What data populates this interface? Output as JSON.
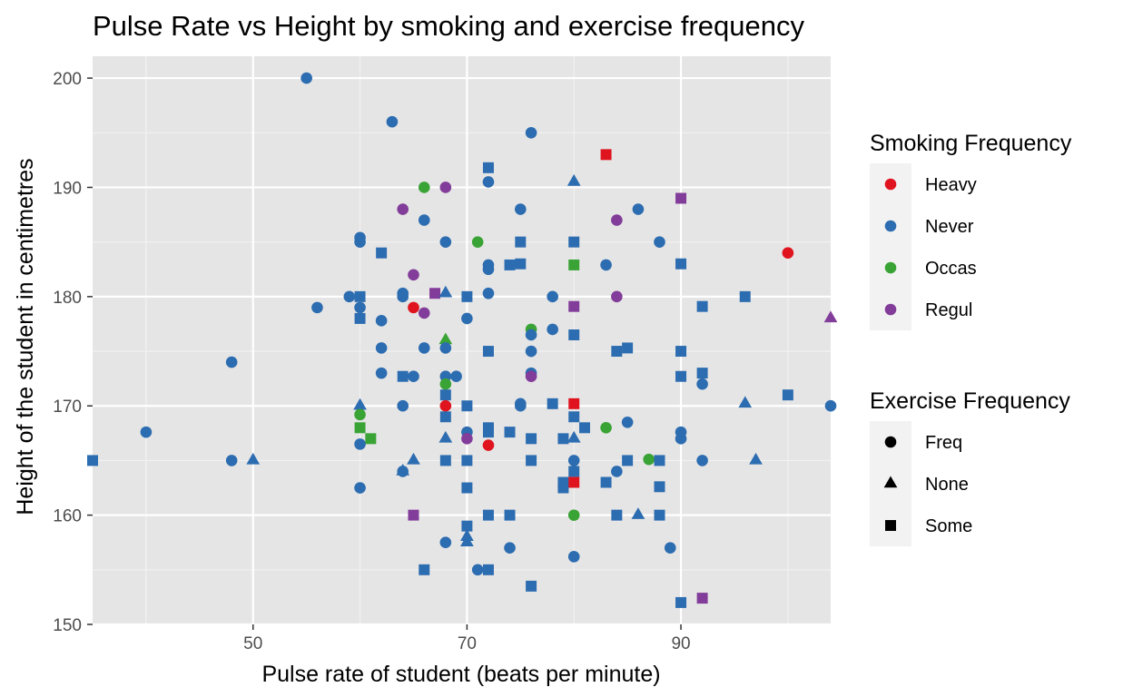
{
  "chart_data": {
    "type": "scatter",
    "title": "Pulse Rate vs Height by smoking and exercise frequency",
    "xlabel": "Pulse rate of student (beats per minute)",
    "ylabel": "Height of the student in centimetres",
    "xlim": [
      35,
      104
    ],
    "ylim": [
      150,
      202
    ],
    "xticks": [
      50,
      70,
      90
    ],
    "yticks": [
      150,
      160,
      170,
      180,
      190,
      200
    ],
    "grid": true,
    "panel_background": "#e5e5e5",
    "legends": [
      {
        "title": "Smoking Frequency",
        "kind": "color",
        "items": [
          {
            "label": "Heavy",
            "key": "Heavy",
            "color": "#e0141e"
          },
          {
            "label": "Never",
            "key": "Never",
            "color": "#2c6cb0"
          },
          {
            "label": "Occas",
            "key": "Occas",
            "color": "#3aa335"
          },
          {
            "label": "Regul",
            "key": "Regul",
            "color": "#823c99"
          }
        ]
      },
      {
        "title": "Exercise Frequency",
        "kind": "shape",
        "items": [
          {
            "label": "Freq",
            "key": "Freq",
            "shape": "circle"
          },
          {
            "label": "None",
            "key": "None",
            "shape": "triangle"
          },
          {
            "label": "Some",
            "key": "Some",
            "shape": "square"
          }
        ]
      }
    ],
    "points": [
      {
        "x": 35,
        "y": 165,
        "smoke": "Never",
        "exer": "Some"
      },
      {
        "x": 40,
        "y": 167.6,
        "smoke": "Never",
        "exer": "Freq"
      },
      {
        "x": 48,
        "y": 174,
        "smoke": "Never",
        "exer": "Freq"
      },
      {
        "x": 48,
        "y": 165,
        "smoke": "Never",
        "exer": "Freq"
      },
      {
        "x": 50,
        "y": 165,
        "smoke": "Never",
        "exer": "None"
      },
      {
        "x": 55,
        "y": 200,
        "smoke": "Never",
        "exer": "Freq"
      },
      {
        "x": 56,
        "y": 179,
        "smoke": "Never",
        "exer": "Freq"
      },
      {
        "x": 59,
        "y": 180,
        "smoke": "Never",
        "exer": "Freq"
      },
      {
        "x": 60,
        "y": 185.4,
        "smoke": "Never",
        "exer": "Freq"
      },
      {
        "x": 60,
        "y": 185,
        "smoke": "Never",
        "exer": "Freq"
      },
      {
        "x": 60,
        "y": 180,
        "smoke": "Never",
        "exer": "Some"
      },
      {
        "x": 60,
        "y": 179,
        "smoke": "Never",
        "exer": "Freq"
      },
      {
        "x": 60,
        "y": 178,
        "smoke": "Never",
        "exer": "Some"
      },
      {
        "x": 60,
        "y": 170,
        "smoke": "Never",
        "exer": "None"
      },
      {
        "x": 60,
        "y": 169.2,
        "smoke": "Occas",
        "exer": "Freq"
      },
      {
        "x": 60,
        "y": 168,
        "smoke": "Occas",
        "exer": "Some"
      },
      {
        "x": 60,
        "y": 166.5,
        "smoke": "Never",
        "exer": "Freq"
      },
      {
        "x": 60,
        "y": 162.5,
        "smoke": "Never",
        "exer": "Freq"
      },
      {
        "x": 61,
        "y": 167,
        "smoke": "Occas",
        "exer": "Some"
      },
      {
        "x": 62,
        "y": 184,
        "smoke": "Never",
        "exer": "Some"
      },
      {
        "x": 62,
        "y": 177.8,
        "smoke": "Never",
        "exer": "Freq"
      },
      {
        "x": 62,
        "y": 175.3,
        "smoke": "Never",
        "exer": "Freq"
      },
      {
        "x": 62,
        "y": 173,
        "smoke": "Never",
        "exer": "Freq"
      },
      {
        "x": 63,
        "y": 196,
        "smoke": "Never",
        "exer": "Freq"
      },
      {
        "x": 64,
        "y": 188,
        "smoke": "Regul",
        "exer": "Freq"
      },
      {
        "x": 64,
        "y": 180.3,
        "smoke": "Never",
        "exer": "Freq"
      },
      {
        "x": 64,
        "y": 180,
        "smoke": "Never",
        "exer": "Freq"
      },
      {
        "x": 64,
        "y": 172.7,
        "smoke": "Never",
        "exer": "Some"
      },
      {
        "x": 64,
        "y": 170,
        "smoke": "Never",
        "exer": "Freq"
      },
      {
        "x": 64,
        "y": 164,
        "smoke": "Never",
        "exer": "Freq"
      },
      {
        "x": 64,
        "y": 164,
        "smoke": "Never",
        "exer": "None"
      },
      {
        "x": 65,
        "y": 182,
        "smoke": "Regul",
        "exer": "Freq"
      },
      {
        "x": 65,
        "y": 179,
        "smoke": "Heavy",
        "exer": "Freq"
      },
      {
        "x": 65,
        "y": 172.7,
        "smoke": "Never",
        "exer": "Freq"
      },
      {
        "x": 65,
        "y": 165,
        "smoke": "Never",
        "exer": "None"
      },
      {
        "x": 65,
        "y": 160,
        "smoke": "Regul",
        "exer": "Some"
      },
      {
        "x": 66,
        "y": 190,
        "smoke": "Occas",
        "exer": "Freq"
      },
      {
        "x": 66,
        "y": 187,
        "smoke": "Never",
        "exer": "Freq"
      },
      {
        "x": 66,
        "y": 178.5,
        "smoke": "Regul",
        "exer": "Freq"
      },
      {
        "x": 66,
        "y": 175.3,
        "smoke": "Never",
        "exer": "Freq"
      },
      {
        "x": 66,
        "y": 155,
        "smoke": "Never",
        "exer": "Some"
      },
      {
        "x": 67,
        "y": 180.3,
        "smoke": "Regul",
        "exer": "Some"
      },
      {
        "x": 68,
        "y": 190,
        "smoke": "Regul",
        "exer": "Freq"
      },
      {
        "x": 68,
        "y": 185,
        "smoke": "Never",
        "exer": "Freq"
      },
      {
        "x": 68,
        "y": 180.3,
        "smoke": "Never",
        "exer": "None"
      },
      {
        "x": 68,
        "y": 176,
        "smoke": "Occas",
        "exer": "None"
      },
      {
        "x": 68,
        "y": 175.3,
        "smoke": "Never",
        "exer": "Freq"
      },
      {
        "x": 68,
        "y": 172.7,
        "smoke": "Never",
        "exer": "Freq"
      },
      {
        "x": 68,
        "y": 172,
        "smoke": "Occas",
        "exer": "Freq"
      },
      {
        "x": 68,
        "y": 171,
        "smoke": "Never",
        "exer": "Some"
      },
      {
        "x": 68,
        "y": 170,
        "smoke": "Heavy",
        "exer": "Freq"
      },
      {
        "x": 68,
        "y": 169,
        "smoke": "Never",
        "exer": "Some"
      },
      {
        "x": 68,
        "y": 167,
        "smoke": "Never",
        "exer": "None"
      },
      {
        "x": 68,
        "y": 165,
        "smoke": "Never",
        "exer": "Some"
      },
      {
        "x": 68,
        "y": 157.5,
        "smoke": "Never",
        "exer": "Freq"
      },
      {
        "x": 69,
        "y": 172.7,
        "smoke": "Never",
        "exer": "Freq"
      },
      {
        "x": 70,
        "y": 180,
        "smoke": "Never",
        "exer": "Some"
      },
      {
        "x": 70,
        "y": 178,
        "smoke": "Never",
        "exer": "Freq"
      },
      {
        "x": 70,
        "y": 170,
        "smoke": "Never",
        "exer": "Some"
      },
      {
        "x": 70,
        "y": 167.6,
        "smoke": "Never",
        "exer": "Freq"
      },
      {
        "x": 70,
        "y": 167,
        "smoke": "Regul",
        "exer": "Freq"
      },
      {
        "x": 70,
        "y": 165,
        "smoke": "Never",
        "exer": "Some"
      },
      {
        "x": 70,
        "y": 162.5,
        "smoke": "Never",
        "exer": "Some"
      },
      {
        "x": 70,
        "y": 159,
        "smoke": "Never",
        "exer": "Some"
      },
      {
        "x": 70,
        "y": 158,
        "smoke": "Never",
        "exer": "None"
      },
      {
        "x": 70,
        "y": 157.5,
        "smoke": "Never",
        "exer": "None"
      },
      {
        "x": 71,
        "y": 185,
        "smoke": "Occas",
        "exer": "Freq"
      },
      {
        "x": 71,
        "y": 155,
        "smoke": "Never",
        "exer": "Freq"
      },
      {
        "x": 72,
        "y": 191.8,
        "smoke": "Never",
        "exer": "Some"
      },
      {
        "x": 72,
        "y": 190.5,
        "smoke": "Never",
        "exer": "Freq"
      },
      {
        "x": 72,
        "y": 182.9,
        "smoke": "Never",
        "exer": "Freq"
      },
      {
        "x": 72,
        "y": 182.5,
        "smoke": "Never",
        "exer": "Freq"
      },
      {
        "x": 72,
        "y": 180.3,
        "smoke": "Never",
        "exer": "Freq"
      },
      {
        "x": 72,
        "y": 175,
        "smoke": "Never",
        "exer": "Some"
      },
      {
        "x": 72,
        "y": 168,
        "smoke": "Never",
        "exer": "Some"
      },
      {
        "x": 72,
        "y": 167.6,
        "smoke": "Never",
        "exer": "Some"
      },
      {
        "x": 72,
        "y": 166.4,
        "smoke": "Heavy",
        "exer": "Freq"
      },
      {
        "x": 72,
        "y": 160,
        "smoke": "Never",
        "exer": "Some"
      },
      {
        "x": 72,
        "y": 155,
        "smoke": "Never",
        "exer": "Some"
      },
      {
        "x": 74,
        "y": 182.9,
        "smoke": "Never",
        "exer": "Some"
      },
      {
        "x": 74,
        "y": 167.6,
        "smoke": "Never",
        "exer": "Some"
      },
      {
        "x": 74,
        "y": 160,
        "smoke": "Never",
        "exer": "Some"
      },
      {
        "x": 74,
        "y": 157,
        "smoke": "Never",
        "exer": "Freq"
      },
      {
        "x": 75,
        "y": 188,
        "smoke": "Never",
        "exer": "Freq"
      },
      {
        "x": 75,
        "y": 185,
        "smoke": "Never",
        "exer": "Some"
      },
      {
        "x": 75,
        "y": 183,
        "smoke": "Never",
        "exer": "Some"
      },
      {
        "x": 75,
        "y": 170.2,
        "smoke": "Never",
        "exer": "Freq"
      },
      {
        "x": 75,
        "y": 170,
        "smoke": "Never",
        "exer": "Freq"
      },
      {
        "x": 76,
        "y": 195,
        "smoke": "Never",
        "exer": "Freq"
      },
      {
        "x": 76,
        "y": 177,
        "smoke": "Occas",
        "exer": "Freq"
      },
      {
        "x": 76,
        "y": 176.5,
        "smoke": "Never",
        "exer": "Freq"
      },
      {
        "x": 76,
        "y": 175,
        "smoke": "Never",
        "exer": "Freq"
      },
      {
        "x": 76,
        "y": 173,
        "smoke": "Never",
        "exer": "Freq"
      },
      {
        "x": 76,
        "y": 172.7,
        "smoke": "Regul",
        "exer": "Freq"
      },
      {
        "x": 76,
        "y": 167,
        "smoke": "Never",
        "exer": "Some"
      },
      {
        "x": 76,
        "y": 165,
        "smoke": "Never",
        "exer": "Some"
      },
      {
        "x": 76,
        "y": 153.5,
        "smoke": "Never",
        "exer": "Some"
      },
      {
        "x": 78,
        "y": 180,
        "smoke": "Never",
        "exer": "Freq"
      },
      {
        "x": 78,
        "y": 177,
        "smoke": "Never",
        "exer": "Freq"
      },
      {
        "x": 78,
        "y": 170.2,
        "smoke": "Never",
        "exer": "Some"
      },
      {
        "x": 79,
        "y": 167,
        "smoke": "Never",
        "exer": "Some"
      },
      {
        "x": 79,
        "y": 163,
        "smoke": "Never",
        "exer": "Some"
      },
      {
        "x": 79,
        "y": 162.5,
        "smoke": "Never",
        "exer": "Some"
      },
      {
        "x": 80,
        "y": 190.5,
        "smoke": "Never",
        "exer": "None"
      },
      {
        "x": 80,
        "y": 185,
        "smoke": "Never",
        "exer": "Some"
      },
      {
        "x": 80,
        "y": 182.9,
        "smoke": "Occas",
        "exer": "Some"
      },
      {
        "x": 80,
        "y": 179.1,
        "smoke": "Regul",
        "exer": "Some"
      },
      {
        "x": 80,
        "y": 176.5,
        "smoke": "Never",
        "exer": "Some"
      },
      {
        "x": 80,
        "y": 170.2,
        "smoke": "Heavy",
        "exer": "Some"
      },
      {
        "x": 80,
        "y": 169,
        "smoke": "Never",
        "exer": "Some"
      },
      {
        "x": 80,
        "y": 167,
        "smoke": "Never",
        "exer": "None"
      },
      {
        "x": 80,
        "y": 165,
        "smoke": "Never",
        "exer": "Freq"
      },
      {
        "x": 80,
        "y": 164,
        "smoke": "Never",
        "exer": "Some"
      },
      {
        "x": 80,
        "y": 163,
        "smoke": "Heavy",
        "exer": "Some"
      },
      {
        "x": 80,
        "y": 160,
        "smoke": "Occas",
        "exer": "Freq"
      },
      {
        "x": 80,
        "y": 156.2,
        "smoke": "Never",
        "exer": "Freq"
      },
      {
        "x": 81,
        "y": 168,
        "smoke": "Never",
        "exer": "Some"
      },
      {
        "x": 83,
        "y": 193,
        "smoke": "Heavy",
        "exer": "Some"
      },
      {
        "x": 83,
        "y": 182.9,
        "smoke": "Never",
        "exer": "Freq"
      },
      {
        "x": 83,
        "y": 168,
        "smoke": "Occas",
        "exer": "Freq"
      },
      {
        "x": 83,
        "y": 163,
        "smoke": "Never",
        "exer": "Some"
      },
      {
        "x": 84,
        "y": 187,
        "smoke": "Regul",
        "exer": "Freq"
      },
      {
        "x": 84,
        "y": 180,
        "smoke": "Regul",
        "exer": "Freq"
      },
      {
        "x": 84,
        "y": 175,
        "smoke": "Never",
        "exer": "Some"
      },
      {
        "x": 84,
        "y": 164,
        "smoke": "Never",
        "exer": "Freq"
      },
      {
        "x": 84,
        "y": 160,
        "smoke": "Never",
        "exer": "Some"
      },
      {
        "x": 85,
        "y": 175.3,
        "smoke": "Never",
        "exer": "Some"
      },
      {
        "x": 85,
        "y": 168.5,
        "smoke": "Never",
        "exer": "Freq"
      },
      {
        "x": 85,
        "y": 165,
        "smoke": "Never",
        "exer": "Some"
      },
      {
        "x": 86,
        "y": 188,
        "smoke": "Never",
        "exer": "Freq"
      },
      {
        "x": 86,
        "y": 160,
        "smoke": "Never",
        "exer": "None"
      },
      {
        "x": 87,
        "y": 165.1,
        "smoke": "Occas",
        "exer": "Freq"
      },
      {
        "x": 88,
        "y": 185,
        "smoke": "Never",
        "exer": "Freq"
      },
      {
        "x": 88,
        "y": 165,
        "smoke": "Never",
        "exer": "Some"
      },
      {
        "x": 88,
        "y": 162.6,
        "smoke": "Never",
        "exer": "Some"
      },
      {
        "x": 88,
        "y": 160,
        "smoke": "Never",
        "exer": "Some"
      },
      {
        "x": 89,
        "y": 157,
        "smoke": "Never",
        "exer": "Freq"
      },
      {
        "x": 90,
        "y": 189,
        "smoke": "Regul",
        "exer": "Some"
      },
      {
        "x": 90,
        "y": 183,
        "smoke": "Never",
        "exer": "Some"
      },
      {
        "x": 90,
        "y": 175,
        "smoke": "Never",
        "exer": "Some"
      },
      {
        "x": 90,
        "y": 172.7,
        "smoke": "Never",
        "exer": "Some"
      },
      {
        "x": 90,
        "y": 167.6,
        "smoke": "Never",
        "exer": "Freq"
      },
      {
        "x": 90,
        "y": 167,
        "smoke": "Never",
        "exer": "Freq"
      },
      {
        "x": 90,
        "y": 152,
        "smoke": "Never",
        "exer": "Some"
      },
      {
        "x": 92,
        "y": 179.1,
        "smoke": "Never",
        "exer": "Some"
      },
      {
        "x": 92,
        "y": 173,
        "smoke": "Never",
        "exer": "Some"
      },
      {
        "x": 92,
        "y": 172,
        "smoke": "Never",
        "exer": "Freq"
      },
      {
        "x": 92,
        "y": 165,
        "smoke": "Never",
        "exer": "Freq"
      },
      {
        "x": 92,
        "y": 152.4,
        "smoke": "Regul",
        "exer": "Some"
      },
      {
        "x": 96,
        "y": 180,
        "smoke": "Never",
        "exer": "Some"
      },
      {
        "x": 96,
        "y": 170.2,
        "smoke": "Never",
        "exer": "None"
      },
      {
        "x": 97,
        "y": 165,
        "smoke": "Never",
        "exer": "None"
      },
      {
        "x": 100,
        "y": 184,
        "smoke": "Heavy",
        "exer": "Freq"
      },
      {
        "x": 100,
        "y": 171,
        "smoke": "Never",
        "exer": "Some"
      },
      {
        "x": 104,
        "y": 178,
        "smoke": "Regul",
        "exer": "None"
      },
      {
        "x": 104,
        "y": 170,
        "smoke": "Never",
        "exer": "Freq"
      }
    ]
  }
}
